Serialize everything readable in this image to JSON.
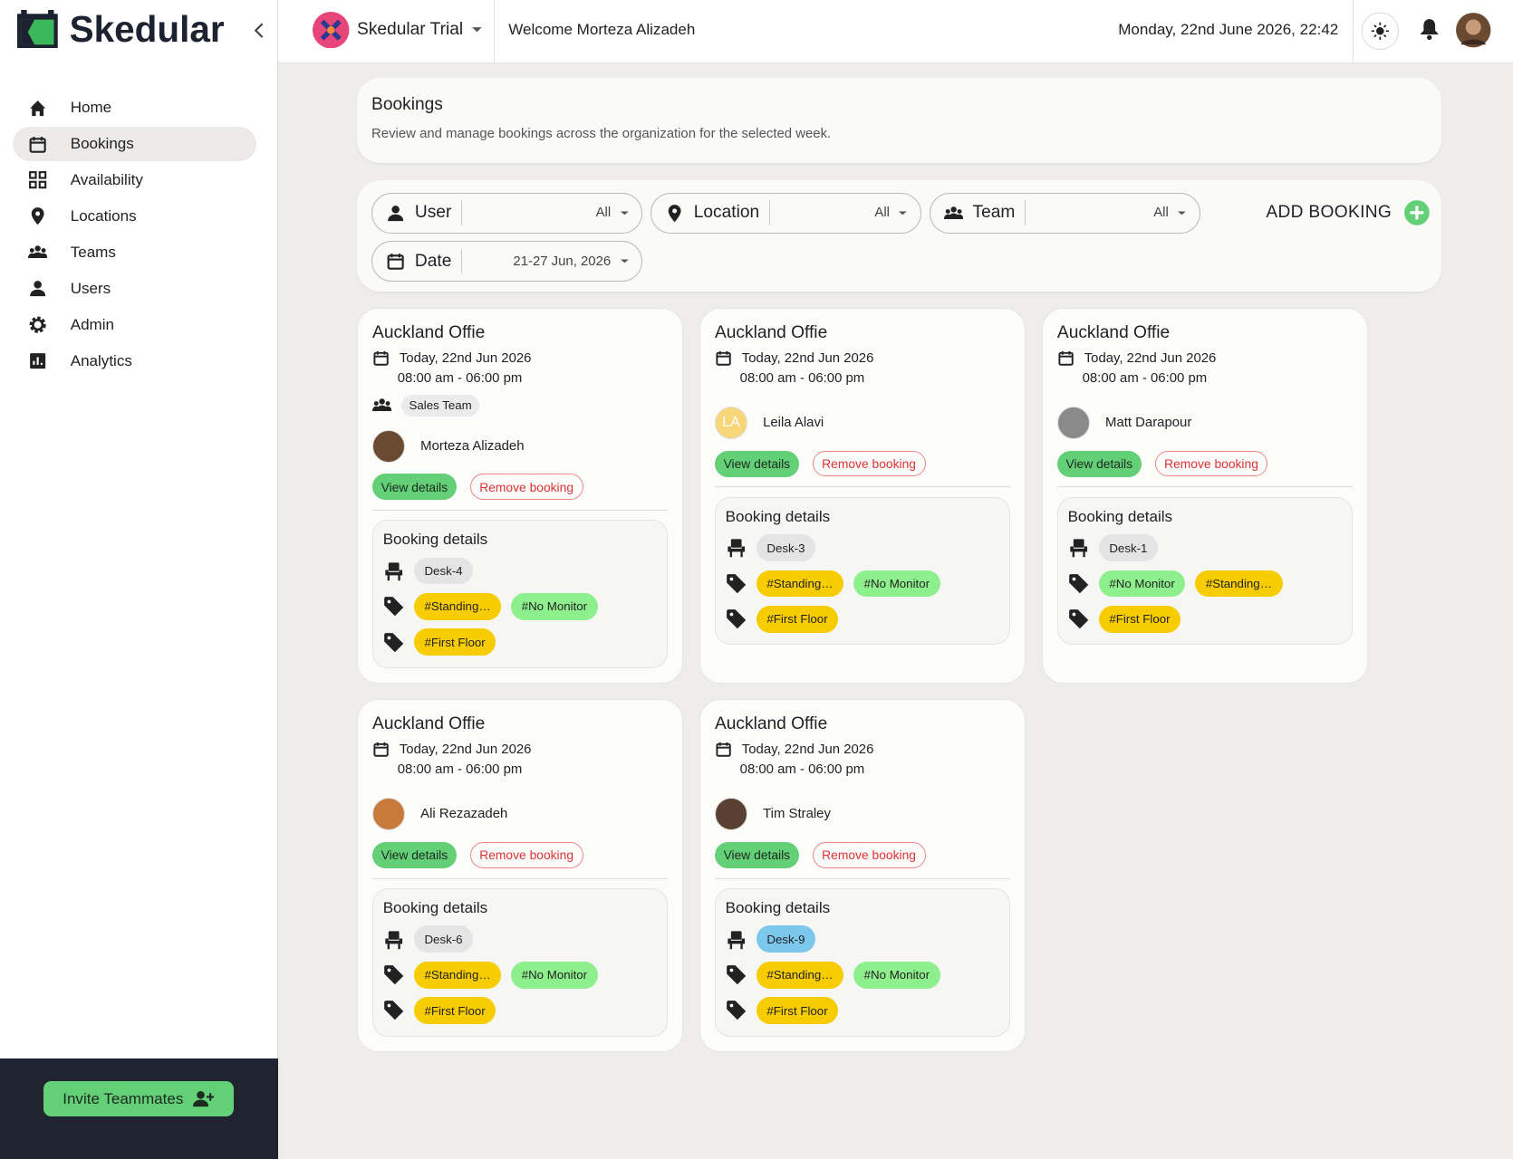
{
  "sidebar": {
    "brand": "Skedular",
    "nav": [
      "Home",
      "Bookings",
      "Availability",
      "Locations",
      "Teams",
      "Users",
      "Admin",
      "Analytics"
    ],
    "active": 1,
    "invite": "Invite Teammates"
  },
  "header": {
    "org": "Skedular Trial",
    "welcome": "Welcome Morteza Alizadeh",
    "datetime": "Monday, 22nd June 2026, 22:42"
  },
  "page": {
    "title": "Bookings",
    "description": "Review and manage bookings across the organization for the selected week."
  },
  "filters": [
    {
      "label": "User",
      "value": "All",
      "icon": "person"
    },
    {
      "label": "Location",
      "value": "All",
      "icon": "pin"
    },
    {
      "label": "Team",
      "value": "All",
      "icon": "group"
    },
    {
      "label": "Date",
      "value": "21-27 Jun, 2026",
      "icon": "cal"
    }
  ],
  "add_booking": "ADD BOOKING",
  "actions": {
    "view": "View details",
    "remove": "Remove booking",
    "details_title": "Booking details"
  },
  "bookings": [
    {
      "location": "Auckland Offie",
      "date": "Today, 22nd Jun 2026",
      "time": "08:00 am - 06:00 pm",
      "team": "Sales Team",
      "user": "Morteza Alizadeh",
      "avatar_color": "#6b4a32",
      "desk": "Desk-4",
      "desk_color": "#e4e4e4",
      "tags": [
        [
          {
            "text": "#Standing…",
            "color": "#f7cc00"
          },
          {
            "text": "#No Monitor",
            "color": "#8ef08c"
          }
        ],
        [
          {
            "text": "#First Floor",
            "color": "#f7cc00"
          }
        ]
      ]
    },
    {
      "location": "Auckland Offie",
      "date": "Today, 22nd Jun 2026",
      "time": "08:00 am - 06:00 pm",
      "user": "Leila Alavi",
      "initials": "LA",
      "avatar_color": "#f7d77a",
      "desk": "Desk-3",
      "desk_color": "#e4e4e4",
      "tags": [
        [
          {
            "text": "#Standing…",
            "color": "#f7cc00"
          },
          {
            "text": "#No Monitor",
            "color": "#8ef08c"
          }
        ],
        [
          {
            "text": "#First Floor",
            "color": "#f7cc00"
          }
        ]
      ]
    },
    {
      "location": "Auckland Offie",
      "date": "Today, 22nd Jun 2026",
      "time": "08:00 am - 06:00 pm",
      "user": "Matt Darapour",
      "avatar_color": "#8a8a8a",
      "desk": "Desk-1",
      "desk_color": "#e4e4e4",
      "tags": [
        [
          {
            "text": "#No Monitor",
            "color": "#8ef08c"
          },
          {
            "text": "#Standing…",
            "color": "#f7cc00"
          }
        ],
        [
          {
            "text": "#First Floor",
            "color": "#f7cc00"
          }
        ]
      ]
    },
    {
      "location": "Auckland Offie",
      "date": "Today, 22nd Jun 2026",
      "time": "08:00 am - 06:00 pm",
      "user": "Ali Rezazadeh",
      "avatar_color": "#c77a3a",
      "desk": "Desk-6",
      "desk_color": "#e4e4e4",
      "tags": [
        [
          {
            "text": "#Standing…",
            "color": "#f7cc00"
          },
          {
            "text": "#No Monitor",
            "color": "#8ef08c"
          }
        ],
        [
          {
            "text": "#First Floor",
            "color": "#f7cc00"
          }
        ]
      ]
    },
    {
      "location": "Auckland Offie",
      "date": "Today, 22nd Jun 2026",
      "time": "08:00 am - 06:00 pm",
      "user": "Tim Straley",
      "avatar_color": "#5a4030",
      "desk": "Desk-9",
      "desk_color": "#7cc8ec",
      "tags": [
        [
          {
            "text": "#Standing…",
            "color": "#f7cc00"
          },
          {
            "text": "#No Monitor",
            "color": "#8ef08c"
          }
        ],
        [
          {
            "text": "#First Floor",
            "color": "#f7cc00"
          }
        ]
      ]
    }
  ]
}
